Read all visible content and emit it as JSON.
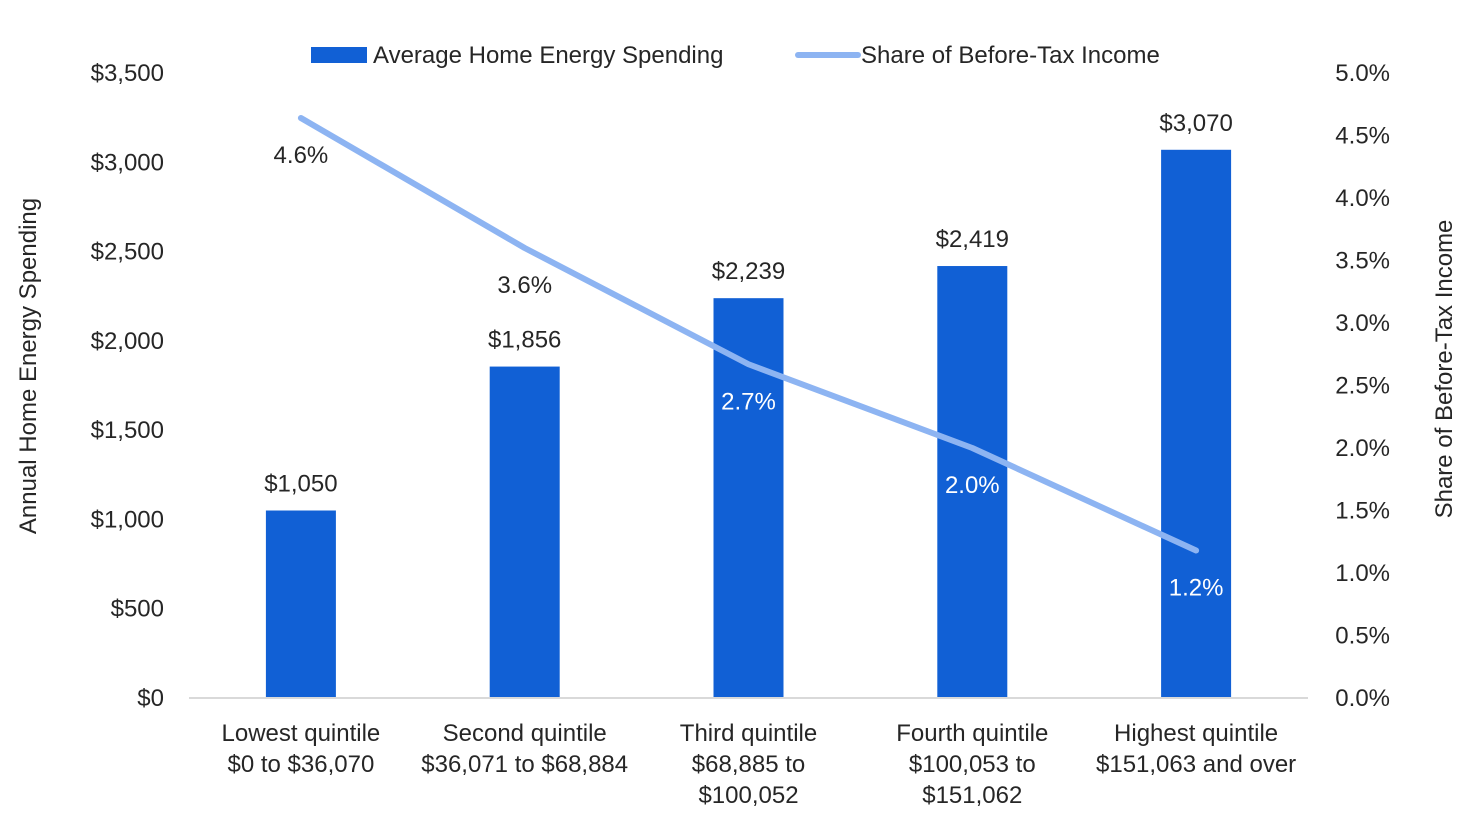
{
  "chart_data": {
    "type": "bar",
    "categories": [
      [
        "Lowest quintile",
        "$0 to $36,070"
      ],
      [
        "Second quintile",
        "$36,071 to $68,884"
      ],
      [
        "Third quintile",
        "$68,885 to",
        "$100,052"
      ],
      [
        "Fourth quintile",
        "$100,053 to",
        "$151,062"
      ],
      [
        "Highest quintile",
        "$151,063 and over"
      ]
    ],
    "series": [
      {
        "name": "Average Home Energy Spending",
        "type": "bar",
        "axis": "left",
        "color": "#1160D5",
        "values": [
          1050,
          1856,
          2239,
          2419,
          3070
        ],
        "labels": [
          "$1,050",
          "$1,856",
          "$2,239",
          "$2,419",
          "$3,070"
        ]
      },
      {
        "name": "Share of Before-Tax Income",
        "type": "line",
        "axis": "right",
        "color": "#8DB4F2",
        "values": [
          4.64,
          3.6,
          2.67,
          2.0,
          1.18
        ],
        "labels": [
          "4.6%",
          "3.6%",
          "2.7%",
          "2.0%",
          "1.2%"
        ]
      }
    ],
    "ylabel": "Annual Home Energy Spending",
    "y2label": "Share of Before-Tax Income",
    "ylim": [
      0,
      3500
    ],
    "y2lim": [
      0,
      5.0
    ],
    "yticks": [
      "$0",
      "$500",
      "$1,000",
      "$1,500",
      "$2,000",
      "$2,500",
      "$3,000",
      "$3,500"
    ],
    "y2ticks": [
      "0.0%",
      "0.5%",
      "1.0%",
      "1.5%",
      "2.0%",
      "2.5%",
      "3.0%",
      "3.5%",
      "4.0%",
      "4.5%",
      "5.0%"
    ],
    "grid": false,
    "legend": "top"
  }
}
